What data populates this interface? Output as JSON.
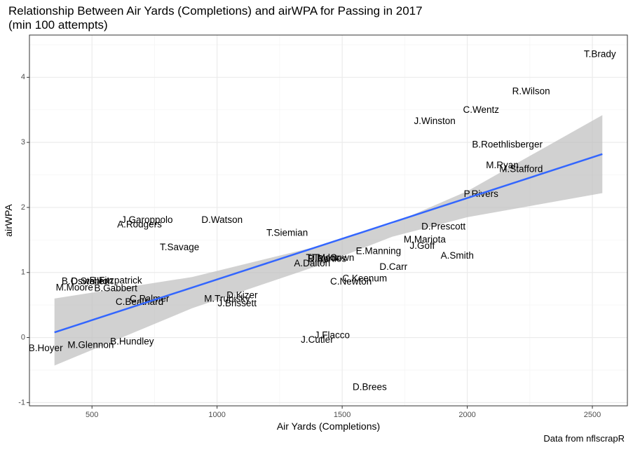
{
  "chart_data": {
    "type": "scatter",
    "title_line1": "Relationship Between Air Yards (Completions) and airWPA for Passing in 2017",
    "title_line2": "(min 100 attempts)",
    "xlabel": "Air Yards (Completions)",
    "ylabel": "airWPA",
    "caption": "Data from nflscrapR",
    "xlim": [
      250,
      2640
    ],
    "ylim": [
      -1.05,
      4.65
    ],
    "x_ticks": [
      500,
      1000,
      1500,
      2000,
      2500
    ],
    "y_ticks": [
      -1,
      0,
      1,
      2,
      3,
      4
    ],
    "grid": true,
    "points": [
      {
        "label": "T.Brady",
        "x": 2530,
        "y": 4.35
      },
      {
        "label": "R.Wilson",
        "x": 2255,
        "y": 3.78
      },
      {
        "label": "C.Wentz",
        "x": 2055,
        "y": 3.49
      },
      {
        "label": "J.Winston",
        "x": 1870,
        "y": 3.32
      },
      {
        "label": "B.Roethlisberger",
        "x": 2160,
        "y": 2.96
      },
      {
        "label": "M.Ryan",
        "x": 2140,
        "y": 2.64
      },
      {
        "label": "M.Stafford",
        "x": 2215,
        "y": 2.58
      },
      {
        "label": "P.Rivers",
        "x": 2055,
        "y": 2.2
      },
      {
        "label": "D.Prescott",
        "x": 1905,
        "y": 1.7
      },
      {
        "label": "M.Mariota",
        "x": 1830,
        "y": 1.5
      },
      {
        "label": "J.Goff",
        "x": 1820,
        "y": 1.4
      },
      {
        "label": "E.Manning",
        "x": 1645,
        "y": 1.32
      },
      {
        "label": "A.Smith",
        "x": 1960,
        "y": 1.25
      },
      {
        "label": "D.Carr",
        "x": 1705,
        "y": 1.08
      },
      {
        "label": "J.McCown",
        "x": 1460,
        "y": 1.22
      },
      {
        "label": "T.Taylor",
        "x": 1420,
        "y": 1.22
      },
      {
        "label": "B.Bortles",
        "x": 1440,
        "y": 1.2
      },
      {
        "label": "A.Dalton",
        "x": 1380,
        "y": 1.13
      },
      {
        "label": "C.Keenum",
        "x": 1590,
        "y": 0.9
      },
      {
        "label": "C.Newton",
        "x": 1535,
        "y": 0.85
      },
      {
        "label": "D.Watson",
        "x": 1020,
        "y": 1.8
      },
      {
        "label": "T.Siemian",
        "x": 1280,
        "y": 1.6
      },
      {
        "label": "J.Garoppolo",
        "x": 720,
        "y": 1.8
      },
      {
        "label": "A.Rodgers",
        "x": 690,
        "y": 1.73
      },
      {
        "label": "T.Savage",
        "x": 850,
        "y": 1.38
      },
      {
        "label": "R.Fitzpatrick",
        "x": 595,
        "y": 0.87
      },
      {
        "label": "B.Osweiler",
        "x": 470,
        "y": 0.86
      },
      {
        "label": "D.Stanton",
        "x": 500,
        "y": 0.86
      },
      {
        "label": "M.Moore",
        "x": 430,
        "y": 0.76
      },
      {
        "label": "B.Gabbert",
        "x": 595,
        "y": 0.75
      },
      {
        "label": "C.Palmer",
        "x": 730,
        "y": 0.59
      },
      {
        "label": "C.Beathard",
        "x": 690,
        "y": 0.54
      },
      {
        "label": "D.Kizer",
        "x": 1100,
        "y": 0.64
      },
      {
        "label": "M.Trubisky",
        "x": 1040,
        "y": 0.59
      },
      {
        "label": "J.Brissett",
        "x": 1080,
        "y": 0.52
      },
      {
        "label": "J.Flacco",
        "x": 1460,
        "y": 0.03
      },
      {
        "label": "J.Cutler",
        "x": 1400,
        "y": -0.04
      },
      {
        "label": "B.Hundley",
        "x": 660,
        "y": -0.07
      },
      {
        "label": "M.Glennon",
        "x": 495,
        "y": -0.12
      },
      {
        "label": "B.Hoyer",
        "x": 315,
        "y": -0.17
      },
      {
        "label": "D.Brees",
        "x": 1610,
        "y": -0.77
      }
    ],
    "fit_line": {
      "x": [
        350,
        2540
      ],
      "y": [
        0.08,
        2.82
      ]
    },
    "confidence_band": {
      "x": [
        350,
        900,
        1400,
        1700,
        2000,
        2540
      ],
      "upper": [
        0.6,
        0.93,
        1.4,
        1.75,
        2.25,
        3.42
      ],
      "lower": [
        -0.43,
        0.45,
        1.1,
        1.55,
        1.85,
        2.22
      ]
    },
    "colors": {
      "line": "#3366ff",
      "band": "#bebebe",
      "grid_major": "#ebebeb",
      "grid_minor": "#f5f5f5",
      "panel_border": "#333333",
      "faded_label": "#444444"
    }
  }
}
